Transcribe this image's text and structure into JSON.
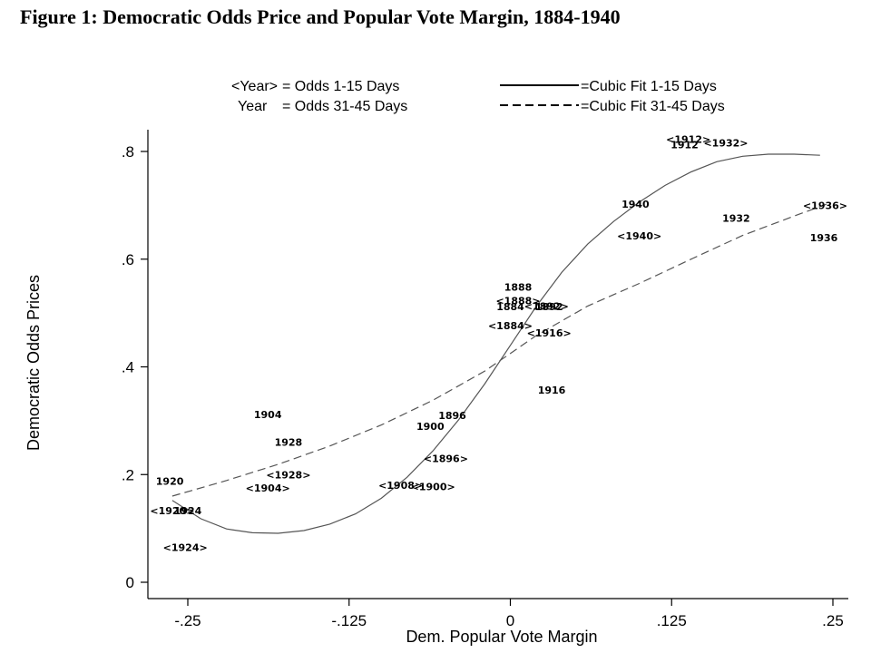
{
  "title": "Figure 1: Democratic Odds Price and Popular Vote Margin, 1884-1940",
  "chart_data": {
    "type": "scatter",
    "xlabel": "Dem. Popular Vote Margin",
    "ylabel": "Democratic Odds Prices",
    "xlim": [
      -0.27,
      0.26
    ],
    "ylim": [
      -0.02,
      0.84
    ],
    "x_ticks": [
      -0.25,
      -0.125,
      0,
      0.125,
      0.25
    ],
    "x_tick_labels": [
      "-.25",
      "-.125",
      "0",
      ".125",
      ".25"
    ],
    "y_ticks": [
      0,
      0.2,
      0.4,
      0.6,
      0.8
    ],
    "y_tick_labels": [
      "0",
      ".2",
      ".4",
      ".6",
      ".8"
    ],
    "grid": false,
    "legend": {
      "placement": "top",
      "entries": [
        {
          "marker": "<Year>",
          "label": "= Odds  1-15 Days"
        },
        {
          "marker": "Year",
          "label": "= Odds 31-45 Days"
        },
        {
          "line": "solid",
          "label": "=Cubic Fit  1-15 Days"
        },
        {
          "line": "dashed",
          "label": "=Cubic Fit 31-45 Days"
        }
      ]
    },
    "series": [
      {
        "name": "Odds 1-15 Days",
        "points": [
          {
            "label": "<1912>",
            "x": 0.138,
            "y": 0.823
          },
          {
            "label": "<1932>",
            "x": 0.167,
            "y": 0.816
          },
          {
            "label": "<1936>",
            "x": 0.244,
            "y": 0.7
          },
          {
            "label": "<1940>",
            "x": 0.1,
            "y": 0.643
          },
          {
            "label": "<1888>",
            "x": 0.006,
            "y": 0.523
          },
          {
            "label": "<1892>",
            "x": 0.028,
            "y": 0.513
          },
          {
            "label": "<1884>",
            "x": 0.0,
            "y": 0.477
          },
          {
            "label": "<1916>",
            "x": 0.03,
            "y": 0.463
          },
          {
            "label": "<1896>",
            "x": -0.05,
            "y": 0.23
          },
          {
            "label": "<1928>",
            "x": -0.172,
            "y": 0.2
          },
          {
            "label": "<1904>",
            "x": -0.188,
            "y": 0.175
          },
          {
            "label": "<1908>",
            "x": -0.085,
            "y": 0.18
          },
          {
            "label": "<1900>",
            "x": -0.06,
            "y": 0.178
          },
          {
            "label": "<1920>",
            "x": -0.262,
            "y": 0.133
          },
          {
            "label": "<1924>",
            "x": -0.252,
            "y": 0.065
          }
        ]
      },
      {
        "name": "Odds 31-45 Days",
        "points": [
          {
            "label": "1912",
            "x": 0.135,
            "y": 0.813
          },
          {
            "label": "1940",
            "x": 0.097,
            "y": 0.702
          },
          {
            "label": "1932",
            "x": 0.175,
            "y": 0.676
          },
          {
            "label": "1936",
            "x": 0.243,
            "y": 0.64
          },
          {
            "label": "1888",
            "x": 0.006,
            "y": 0.548
          },
          {
            "label": "1884",
            "x": 0.0,
            "y": 0.512
          },
          {
            "label": "1892",
            "x": 0.03,
            "y": 0.512
          },
          {
            "label": "1916",
            "x": 0.032,
            "y": 0.357
          },
          {
            "label": "1896",
            "x": -0.045,
            "y": 0.31
          },
          {
            "label": "1900",
            "x": -0.062,
            "y": 0.29
          },
          {
            "label": "1904",
            "x": -0.188,
            "y": 0.312
          },
          {
            "label": "1928",
            "x": -0.172,
            "y": 0.26
          },
          {
            "label": "1920",
            "x": -0.264,
            "y": 0.188
          },
          {
            "label": "1924",
            "x": -0.25,
            "y": 0.133
          }
        ]
      }
    ],
    "fits": [
      {
        "name": "Cubic Fit  1-15 Days",
        "style": "solid",
        "points": [
          [
            -0.262,
            0.152
          ],
          [
            -0.24,
            0.118
          ],
          [
            -0.22,
            0.099
          ],
          [
            -0.2,
            0.092
          ],
          [
            -0.18,
            0.091
          ],
          [
            -0.16,
            0.096
          ],
          [
            -0.14,
            0.108
          ],
          [
            -0.12,
            0.127
          ],
          [
            -0.1,
            0.156
          ],
          [
            -0.08,
            0.195
          ],
          [
            -0.06,
            0.244
          ],
          [
            -0.04,
            0.302
          ],
          [
            -0.02,
            0.368
          ],
          [
            0.0,
            0.44
          ],
          [
            0.02,
            0.512
          ],
          [
            0.04,
            0.576
          ],
          [
            0.06,
            0.628
          ],
          [
            0.08,
            0.67
          ],
          [
            0.1,
            0.706
          ],
          [
            0.12,
            0.737
          ],
          [
            0.14,
            0.762
          ],
          [
            0.16,
            0.781
          ],
          [
            0.18,
            0.791
          ],
          [
            0.2,
            0.795
          ],
          [
            0.22,
            0.795
          ],
          [
            0.24,
            0.793
          ]
        ]
      },
      {
        "name": "Cubic Fit 31-45 Days",
        "style": "dashed",
        "points": [
          [
            -0.262,
            0.16
          ],
          [
            -0.22,
            0.189
          ],
          [
            -0.18,
            0.219
          ],
          [
            -0.14,
            0.253
          ],
          [
            -0.1,
            0.292
          ],
          [
            -0.06,
            0.338
          ],
          [
            -0.02,
            0.392
          ],
          [
            0.0,
            0.425
          ],
          [
            0.02,
            0.458
          ],
          [
            0.06,
            0.513
          ],
          [
            0.1,
            0.555
          ],
          [
            0.14,
            0.6
          ],
          [
            0.18,
            0.644
          ],
          [
            0.22,
            0.68
          ],
          [
            0.245,
            0.702
          ]
        ]
      }
    ]
  }
}
